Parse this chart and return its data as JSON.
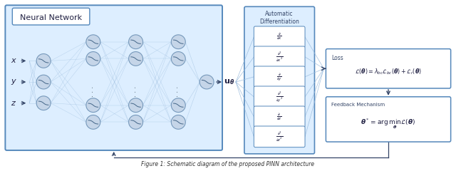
{
  "bg_color": "#ffffff",
  "box_stroke": "#5588bb",
  "box_fill": "#ddeeff",
  "node_fill": "#c5d5e8",
  "node_stroke": "#7799bb",
  "arrow_color": "#334466",
  "light_line_color": "#99bbdd",
  "deriv_labels": [
    "\\frac{\\partial}{\\partial x}",
    "\\frac{\\partial^2}{\\partial x^2}",
    "\\frac{\\partial}{\\partial y}",
    "\\frac{\\partial^2}{\\partial y^2}",
    "\\frac{\\partial}{\\partial z}",
    "\\frac{\\partial^2}{\\partial z^2}"
  ],
  "input_labels": [
    "x",
    "y",
    "z"
  ],
  "nn_label": "Neural Network",
  "ad_label": "Automatic\nDifferentiation",
  "loss_label": "Loss",
  "fb_label": "Feedback Mechanism",
  "loss_eq": "\\mathcal{L}(\\boldsymbol{\\theta}) = \\lambda_{bc}\\mathcal{L}_{bc}(\\boldsymbol{\\theta}) + \\mathcal{L}_r(\\boldsymbol{\\theta})",
  "fb_eq": "\\boldsymbol{\\theta}^* = \\arg\\min_{\\boldsymbol{\\theta}} \\mathcal{L}(\\boldsymbol{\\theta})",
  "caption": "Figure 1: Schematic diagram of the proposed PINN architecture"
}
